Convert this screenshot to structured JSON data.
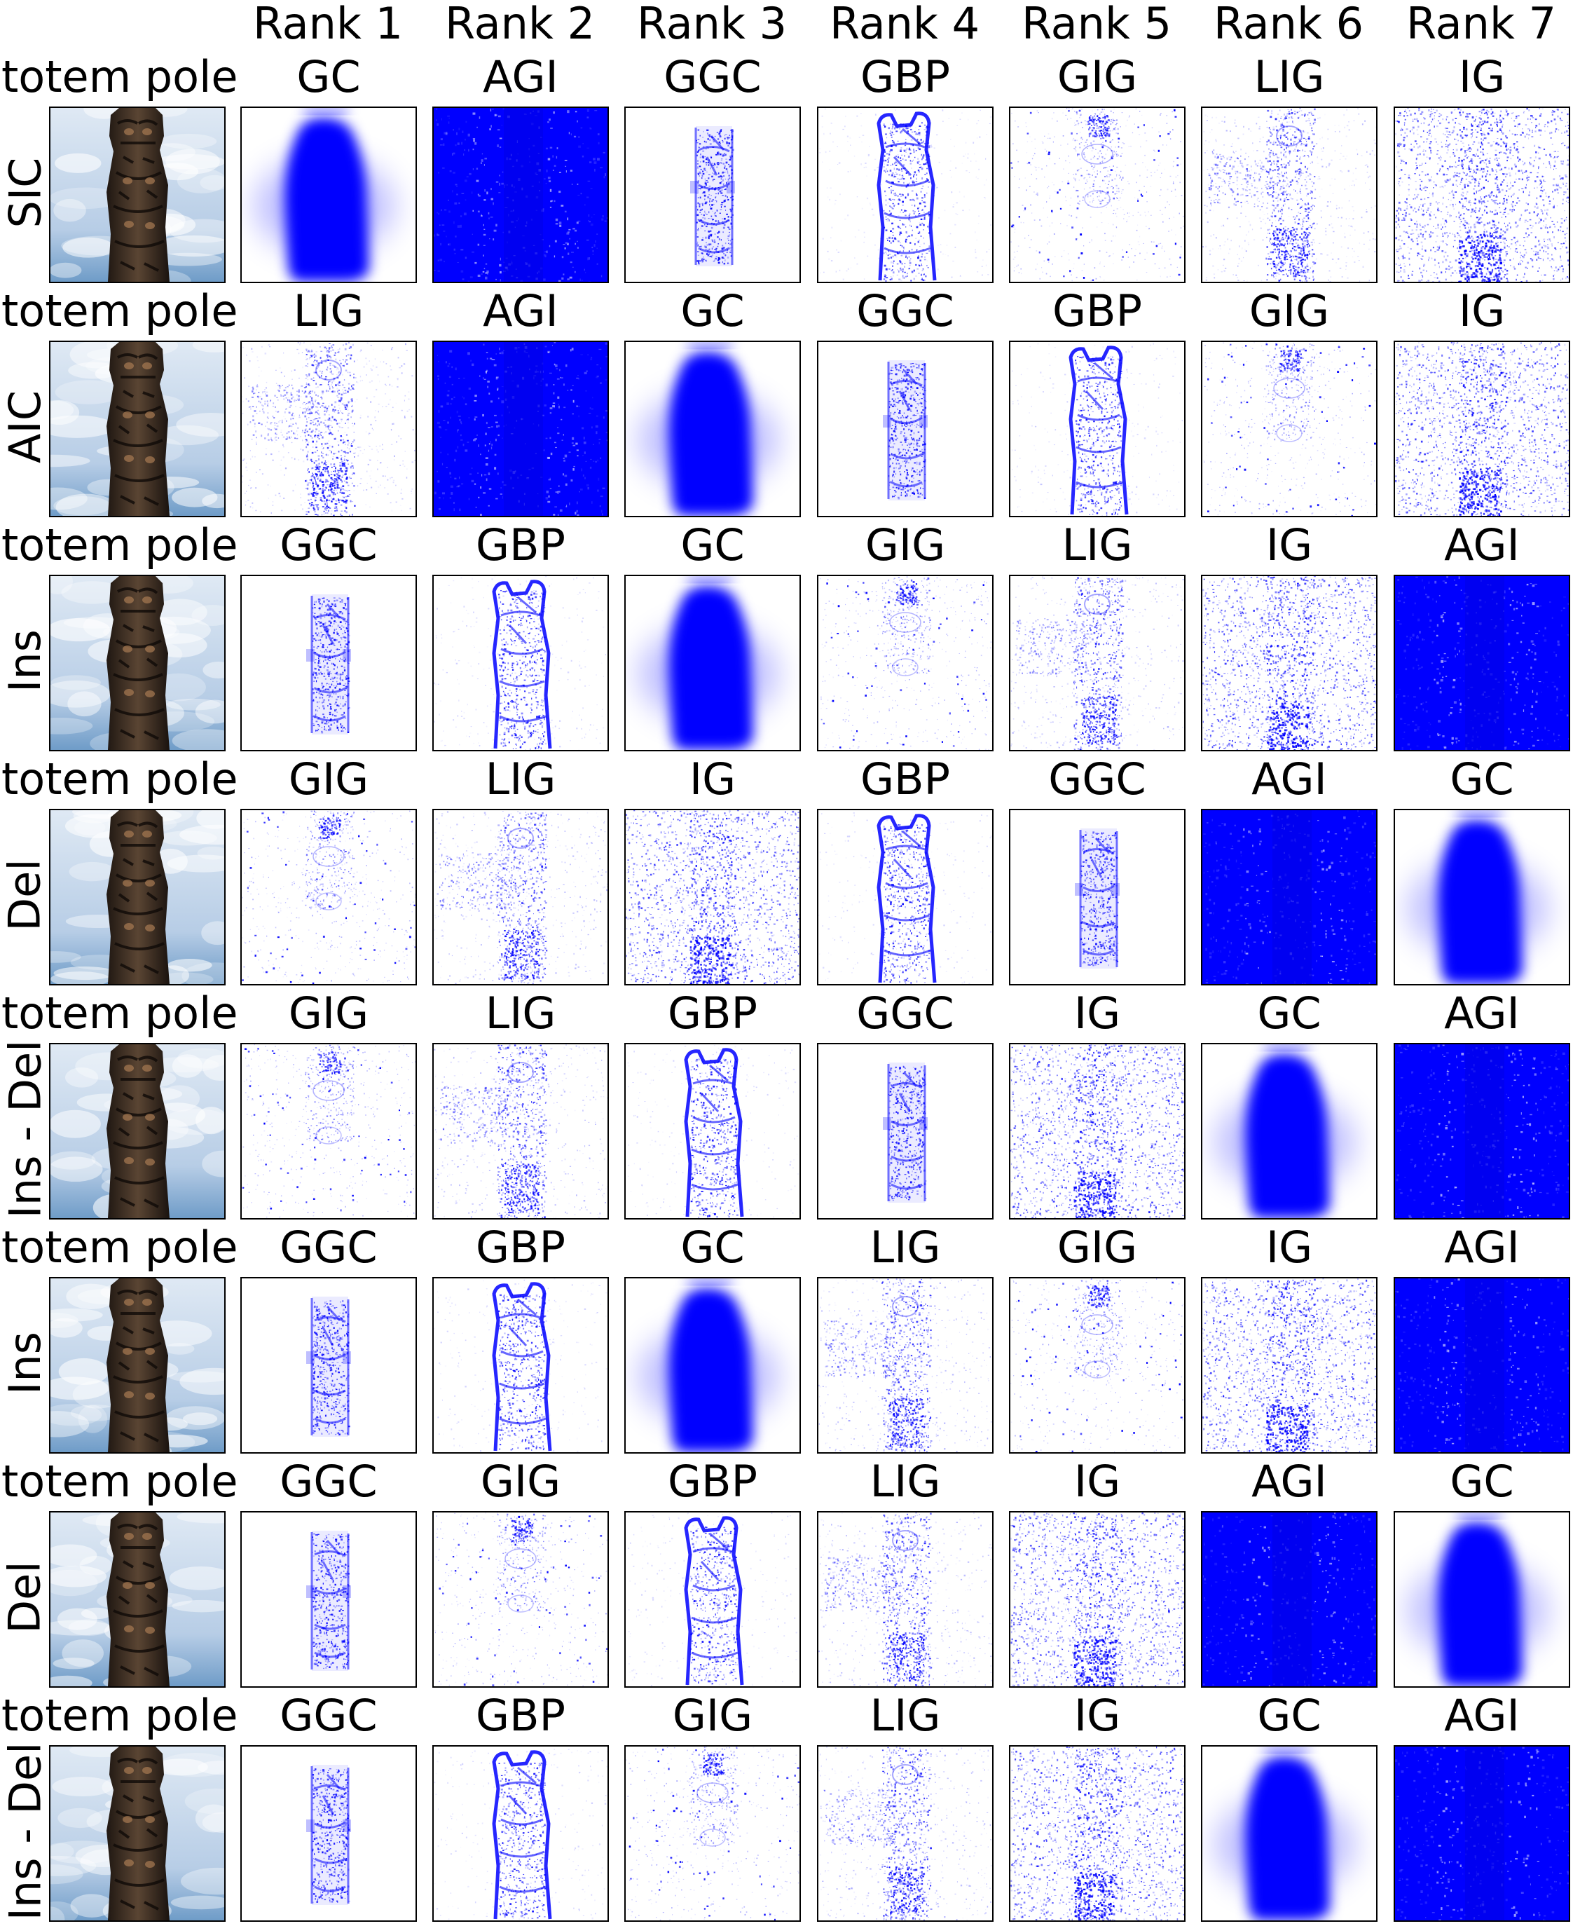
{
  "column_headers": [
    "Rank 1",
    "Rank 2",
    "Rank 3",
    "Rank 4",
    "Rank 5",
    "Rank 6",
    "Rank 7"
  ],
  "colors": {
    "saliency": "#0000ff",
    "background": "#ffffff",
    "frame": "#000000",
    "sky_light": "#dfe9f4",
    "sky_dark": "#6f9cc8",
    "totem_wood": "#3a2c22"
  },
  "rows": [
    {
      "class_label": "totem pole",
      "metric": "SIC",
      "image_icon": "totem-pole-photo",
      "methods": [
        "GC",
        "AGI",
        "GGC",
        "GBP",
        "GIG",
        "LIG",
        "IG"
      ]
    },
    {
      "class_label": "totem pole",
      "metric": "AIC",
      "image_icon": "totem-pole-photo",
      "methods": [
        "LIG",
        "AGI",
        "GC",
        "GGC",
        "GBP",
        "GIG",
        "IG"
      ]
    },
    {
      "class_label": "totem pole",
      "metric": "Ins",
      "image_icon": "totem-pole-photo",
      "methods": [
        "GGC",
        "GBP",
        "GC",
        "GIG",
        "LIG",
        "IG",
        "AGI"
      ]
    },
    {
      "class_label": "totem pole",
      "metric": "Del",
      "image_icon": "totem-pole-photo",
      "methods": [
        "GIG",
        "LIG",
        "IG",
        "GBP",
        "GGC",
        "AGI",
        "GC"
      ]
    },
    {
      "class_label": "totem pole",
      "metric": "Ins - Del",
      "image_icon": "totem-pole-photo",
      "methods": [
        "GIG",
        "LIG",
        "GBP",
        "GGC",
        "IG",
        "GC",
        "AGI"
      ]
    },
    {
      "class_label": "totem pole",
      "metric": "Ins",
      "image_icon": "totem-pole-photo",
      "methods": [
        "GGC",
        "GBP",
        "GC",
        "LIG",
        "GIG",
        "IG",
        "AGI"
      ]
    },
    {
      "class_label": "totem pole",
      "metric": "Del",
      "image_icon": "totem-pole-photo",
      "methods": [
        "GGC",
        "GIG",
        "GBP",
        "LIG",
        "IG",
        "AGI",
        "GC"
      ]
    },
    {
      "class_label": "totem pole",
      "metric": "Ins - Del",
      "image_icon": "totem-pole-photo",
      "methods": [
        "GGC",
        "GBP",
        "GIG",
        "LIG",
        "IG",
        "GC",
        "AGI"
      ]
    }
  ]
}
